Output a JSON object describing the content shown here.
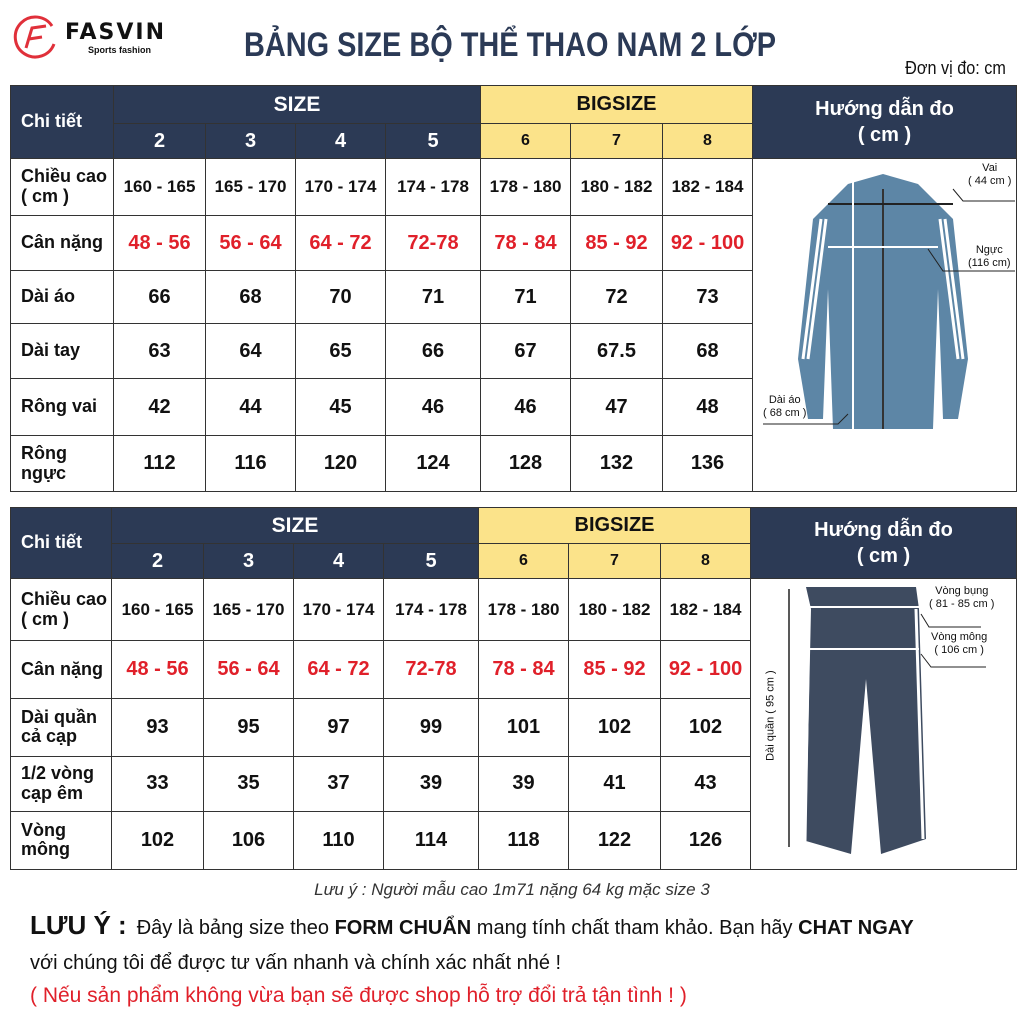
{
  "logo": {
    "name": "FASVIN",
    "tagline": "Sports fashion"
  },
  "title": "BẢNG SIZE BỘ THỂ THAO NAM 2 LỚP",
  "unit": "Đơn vị đo: cm",
  "colors": {
    "header": "#2c3a55",
    "bigsize": "#fbe38a",
    "weight": "#e0202a"
  },
  "table_top": {
    "detail": "Chi tiết",
    "size": "SIZE",
    "bigsize": "BIGSIZE",
    "guide": "Hướng dẫn đo",
    "guide_unit": "( cm )",
    "sizes": [
      "2",
      "3",
      "4",
      "5",
      "6",
      "7",
      "8"
    ],
    "rows": [
      {
        "label": "Chiều cao ( cm )",
        "values": [
          "160 - 165",
          "165 - 170",
          "170 - 174",
          "174 - 178",
          "178 - 180",
          "180 - 182",
          "182 - 184"
        ]
      },
      {
        "label": "Cân nặng",
        "values": [
          "48 - 56",
          "56 - 64",
          "64 - 72",
          "72-78",
          "78 - 84",
          "85 - 92",
          "92 - 100"
        ]
      },
      {
        "label": "Dài áo",
        "values": [
          "66",
          "68",
          "70",
          "71",
          "71",
          "72",
          "73"
        ]
      },
      {
        "label": "Dài tay",
        "values": [
          "63",
          "64",
          "65",
          "66",
          "67",
          "67.5",
          "68"
        ]
      },
      {
        "label": "Rông vai",
        "values": [
          "42",
          "44",
          "45",
          "46",
          "46",
          "47",
          "48"
        ]
      },
      {
        "label": "Rông ngực",
        "values": [
          "112",
          "116",
          "120",
          "124",
          "128",
          "132",
          "136"
        ]
      }
    ],
    "annotations": {
      "shoulder": "Vai",
      "shoulder_v": "( 44 cm )",
      "chest": "Ngực",
      "chest_v": "(116 cm)",
      "length": "Dài áo",
      "length_v": "( 68 cm )"
    }
  },
  "table_bottom": {
    "detail": "Chi tiết",
    "size": "SIZE",
    "bigsize": "BIGSIZE",
    "guide": "Hướng dẫn đo",
    "guide_unit": "( cm )",
    "sizes": [
      "2",
      "3",
      "4",
      "5",
      "6",
      "7",
      "8"
    ],
    "rows": [
      {
        "label": "Chiều cao ( cm )",
        "values": [
          "160 - 165",
          "165 - 170",
          "170 - 174",
          "174 - 178",
          "178 - 180",
          "180 - 182",
          "182 - 184"
        ]
      },
      {
        "label": "Cân nặng",
        "values": [
          "48 - 56",
          "56 - 64",
          "64 - 72",
          "72-78",
          "78 - 84",
          "85 - 92",
          "92 - 100"
        ]
      },
      {
        "label": "Dài quần cả cạp",
        "values": [
          "93",
          "95",
          "97",
          "99",
          "101",
          "102",
          "102"
        ]
      },
      {
        "label": "1/2 vòng cạp êm",
        "values": [
          "33",
          "35",
          "37",
          "39",
          "39",
          "41",
          "43"
        ]
      },
      {
        "label": "Vòng mông",
        "values": [
          "102",
          "106",
          "110",
          "114",
          "118",
          "122",
          "126"
        ]
      }
    ],
    "annotations": {
      "waist": "Vòng bụng",
      "waist_v": "( 81 - 85 cm )",
      "hip": "Vòng mông",
      "hip_v": "( 106 cm )",
      "length": "Dài quần ( 95 cm )"
    }
  },
  "note": "Lưu ý : Người mẫu cao 1m71 nặng 64 kg mặc size 3",
  "footer": {
    "label": "LƯU Ý :",
    "t1": "Đây là bảng size theo ",
    "b1": "FORM CHUẨN",
    "t2": " mang tính chất tham khảo. Bạn hãy ",
    "b2": "CHAT NGAY",
    "line2": "với chúng tôi để được tư vấn nhanh và chính xác nhất nhé !",
    "line3": "( Nếu sản phẩm không vừa bạn sẽ được shop hỗ trợ đổi trả tận tình ! )"
  }
}
